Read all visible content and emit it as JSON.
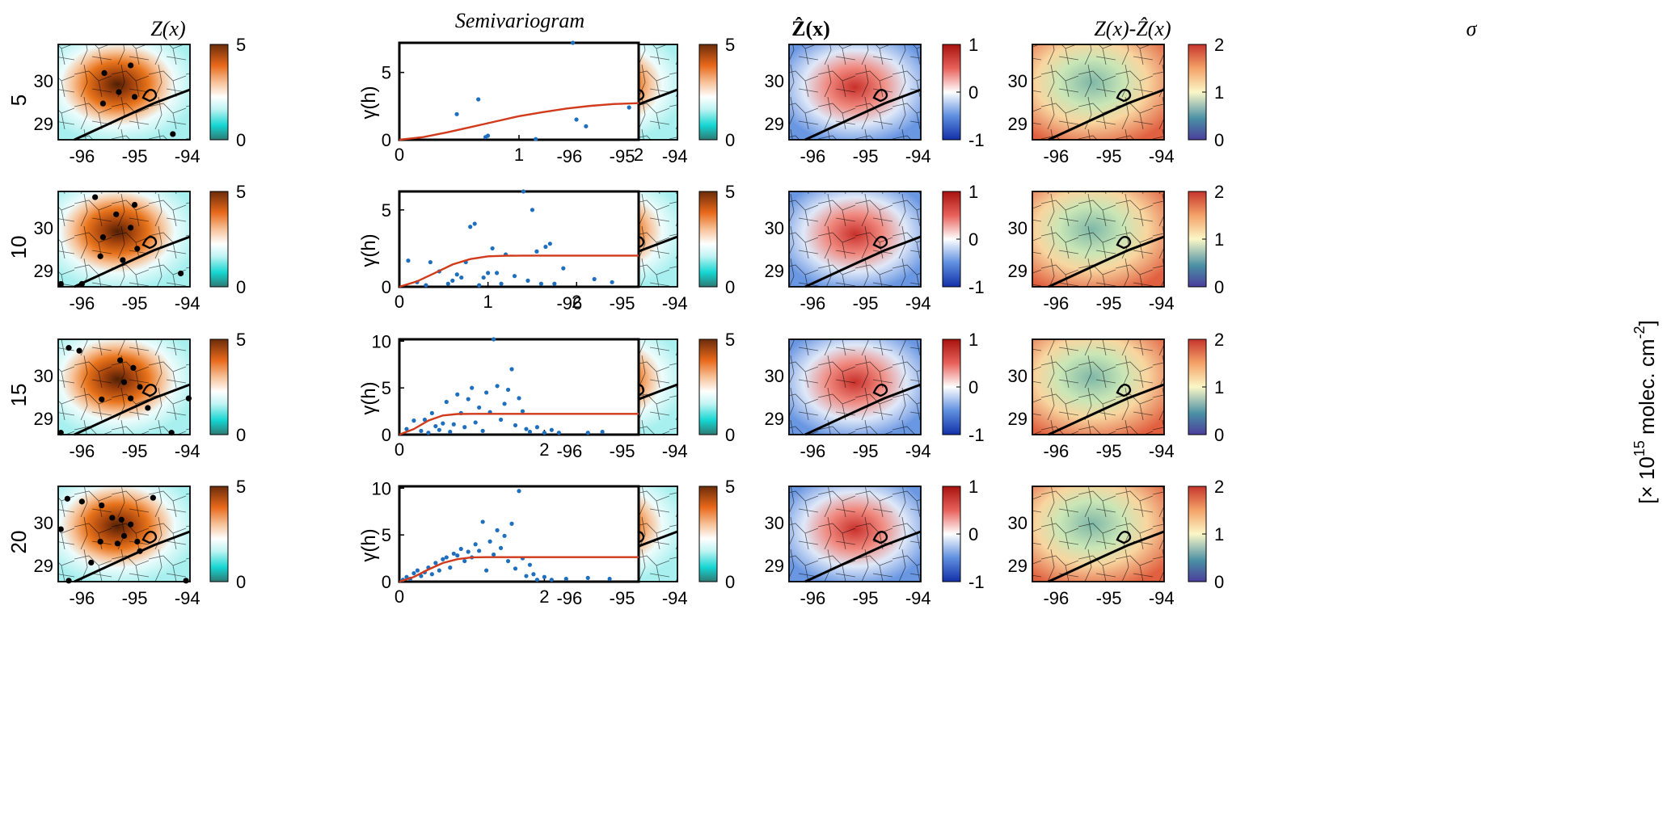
{
  "figure": {
    "column_titles": {
      "z": "Z(x)",
      "semivariogram": "Semivariogram",
      "zhat": "Ẑ(x)",
      "residual": "Z(x)-Ẑ(x)",
      "sigma": "σ"
    },
    "row_labels": [
      "5",
      "10",
      "15",
      "20"
    ],
    "unit_label": "[× 10",
    "unit_exponent": "15",
    "unit_tail": " molec. cm",
    "unit_tail_exponent": "-2",
    "map_lon_ticks": [
      "-96",
      "-95",
      "-94"
    ],
    "map_lat_ticks": [
      "30",
      "29"
    ],
    "colorbars": {
      "z": {
        "ticks": [
          "5",
          "0"
        ],
        "range": [
          0,
          5
        ]
      },
      "zhat": {
        "ticks": [
          "5",
          "0"
        ],
        "range": [
          0,
          5
        ]
      },
      "residual": {
        "ticks": [
          "1",
          "0",
          "-1"
        ],
        "range": [
          -1,
          1
        ]
      },
      "sigma": {
        "ticks": [
          "2",
          "1",
          "0"
        ],
        "range": [
          0,
          2
        ]
      }
    },
    "colors": {
      "model_line": "#d13a1a",
      "empirical_points": "#1f6fbf",
      "station_dots": "#000000",
      "coast": "#000000"
    }
  },
  "chart_data": [
    {
      "type": "scatter",
      "title": "Semivariogram",
      "row": "5",
      "ylabel": "γ(h)",
      "xlabel": "",
      "xlim": [
        0,
        2
      ],
      "ylim": [
        0,
        7.2
      ],
      "xticks": [
        "0",
        "1",
        "2"
      ],
      "yticks": [
        "0",
        "5"
      ],
      "series": [
        {
          "name": "empirical",
          "x": [
            0.48,
            0.66,
            0.72,
            0.74,
            1.14,
            1.45,
            1.48,
            1.56,
            1.92
          ],
          "y": [
            1.9,
            3.0,
            0.2,
            0.3,
            0.05,
            7.2,
            1.5,
            1.0,
            2.4
          ]
        },
        {
          "name": "model",
          "x": [
            0,
            0.2,
            0.4,
            0.6,
            0.8,
            1.0,
            1.2,
            1.4,
            1.6,
            1.8,
            2.0
          ],
          "y": [
            0,
            0.2,
            0.55,
            0.95,
            1.35,
            1.75,
            2.05,
            2.32,
            2.52,
            2.66,
            2.72
          ]
        }
      ]
    },
    {
      "type": "scatter",
      "title": "Semivariogram",
      "row": "10",
      "ylabel": "γ(h)",
      "xlabel": "",
      "xlim": [
        0,
        2.7
      ],
      "ylim": [
        0,
        6.2
      ],
      "xticks": [
        "0",
        "1",
        "2"
      ],
      "yticks": [
        "0",
        "5"
      ],
      "series": [
        {
          "name": "empirical",
          "x": [
            0.1,
            0.2,
            0.3,
            0.35,
            0.45,
            0.55,
            0.6,
            0.65,
            0.7,
            0.75,
            0.8,
            0.85,
            0.9,
            0.95,
            1.0,
            1.05,
            1.1,
            1.15,
            1.2,
            1.3,
            1.4,
            1.45,
            1.5,
            1.55,
            1.6,
            1.65,
            1.7,
            1.75,
            1.85,
            2.2,
            2.4
          ],
          "y": [
            1.7,
            0.3,
            0.1,
            1.6,
            1.0,
            0.2,
            0.4,
            0.8,
            0.6,
            1.6,
            3.9,
            4.1,
            0.1,
            0.6,
            0.9,
            2.5,
            0.9,
            0.2,
            2.1,
            0.7,
            6.2,
            0.4,
            5.0,
            2.3,
            0.2,
            2.6,
            2.8,
            0.2,
            1.2,
            0.5,
            0.3
          ]
        },
        {
          "name": "model",
          "x": [
            0,
            0.2,
            0.4,
            0.6,
            0.8,
            1.0,
            1.2,
            1.4,
            1.6,
            2.0,
            2.7
          ],
          "y": [
            0,
            0.35,
            0.9,
            1.45,
            1.8,
            1.98,
            2.02,
            2.03,
            2.03,
            2.03,
            2.03
          ]
        }
      ]
    },
    {
      "type": "scatter",
      "title": "Semivariogram",
      "row": "15",
      "ylabel": "γ(h)",
      "xlabel": "",
      "xlim": [
        0,
        3.3
      ],
      "ylim": [
        0,
        10.2
      ],
      "xticks": [
        "0",
        "2"
      ],
      "yticks": [
        "0",
        "5",
        "10"
      ],
      "series": [
        {
          "name": "empirical",
          "x": [
            0.1,
            0.2,
            0.3,
            0.35,
            0.4,
            0.45,
            0.5,
            0.55,
            0.6,
            0.65,
            0.7,
            0.75,
            0.8,
            0.85,
            0.9,
            0.95,
            1.0,
            1.05,
            1.1,
            1.15,
            1.2,
            1.25,
            1.3,
            1.35,
            1.4,
            1.45,
            1.5,
            1.55,
            1.6,
            1.65,
            1.7,
            1.75,
            1.8,
            1.9,
            2.0,
            2.1,
            2.2,
            2.6,
            2.8
          ],
          "y": [
            0.6,
            1.5,
            0.4,
            1.6,
            0.2,
            2.3,
            0.9,
            0.5,
            1.2,
            3.5,
            0.3,
            1.1,
            4.3,
            2.3,
            0.8,
            3.8,
            5.0,
            1.3,
            2.9,
            0.4,
            4.5,
            2.4,
            10.2,
            5.2,
            1.6,
            3.3,
            4.8,
            7.0,
            1.0,
            3.9,
            2.5,
            0.6,
            0.3,
            0.8,
            0.2,
            0.5,
            0.2,
            0.2,
            0.3
          ]
        },
        {
          "name": "model",
          "x": [
            0,
            0.2,
            0.4,
            0.6,
            0.8,
            1.0,
            1.2,
            1.6,
            2.0,
            3.3
          ],
          "y": [
            0,
            0.6,
            1.5,
            2.05,
            2.2,
            2.22,
            2.22,
            2.22,
            2.22,
            2.22
          ]
        }
      ]
    },
    {
      "type": "scatter",
      "title": "Semivariogram",
      "row": "20",
      "ylabel": "γ(h)",
      "xlabel": "",
      "xlim": [
        0,
        3.3
      ],
      "ylim": [
        0,
        10.2
      ],
      "xticks": [
        "0",
        "2"
      ],
      "yticks": [
        "0",
        "5",
        "10"
      ],
      "series": [
        {
          "name": "empirical",
          "x": [
            0.05,
            0.1,
            0.15,
            0.2,
            0.25,
            0.3,
            0.35,
            0.4,
            0.45,
            0.5,
            0.55,
            0.6,
            0.65,
            0.7,
            0.75,
            0.8,
            0.85,
            0.9,
            0.95,
            1.0,
            1.05,
            1.1,
            1.15,
            1.2,
            1.25,
            1.3,
            1.35,
            1.4,
            1.45,
            1.5,
            1.55,
            1.6,
            1.65,
            1.7,
            1.75,
            1.8,
            1.85,
            1.9,
            2.0,
            2.1,
            2.3,
            2.6,
            2.9
          ],
          "y": [
            0.2,
            0.5,
            0.3,
            0.9,
            1.2,
            0.6,
            1.0,
            1.5,
            0.8,
            2.0,
            1.2,
            2.4,
            2.6,
            1.5,
            3.0,
            2.8,
            3.5,
            2.2,
            3.2,
            2.6,
            4.0,
            3.3,
            6.4,
            1.2,
            4.3,
            2.9,
            5.5,
            3.6,
            4.9,
            2.2,
            6.2,
            1.4,
            9.7,
            2.5,
            0.6,
            1.8,
            0.8,
            0.2,
            0.5,
            0.2,
            0.3,
            0.4,
            0.3
          ]
        },
        {
          "name": "model",
          "x": [
            0,
            0.2,
            0.4,
            0.6,
            0.8,
            1.0,
            1.2,
            1.6,
            2.0,
            3.3
          ],
          "y": [
            0,
            0.5,
            1.3,
            2.0,
            2.4,
            2.6,
            2.62,
            2.62,
            2.62,
            2.62
          ]
        }
      ]
    }
  ]
}
